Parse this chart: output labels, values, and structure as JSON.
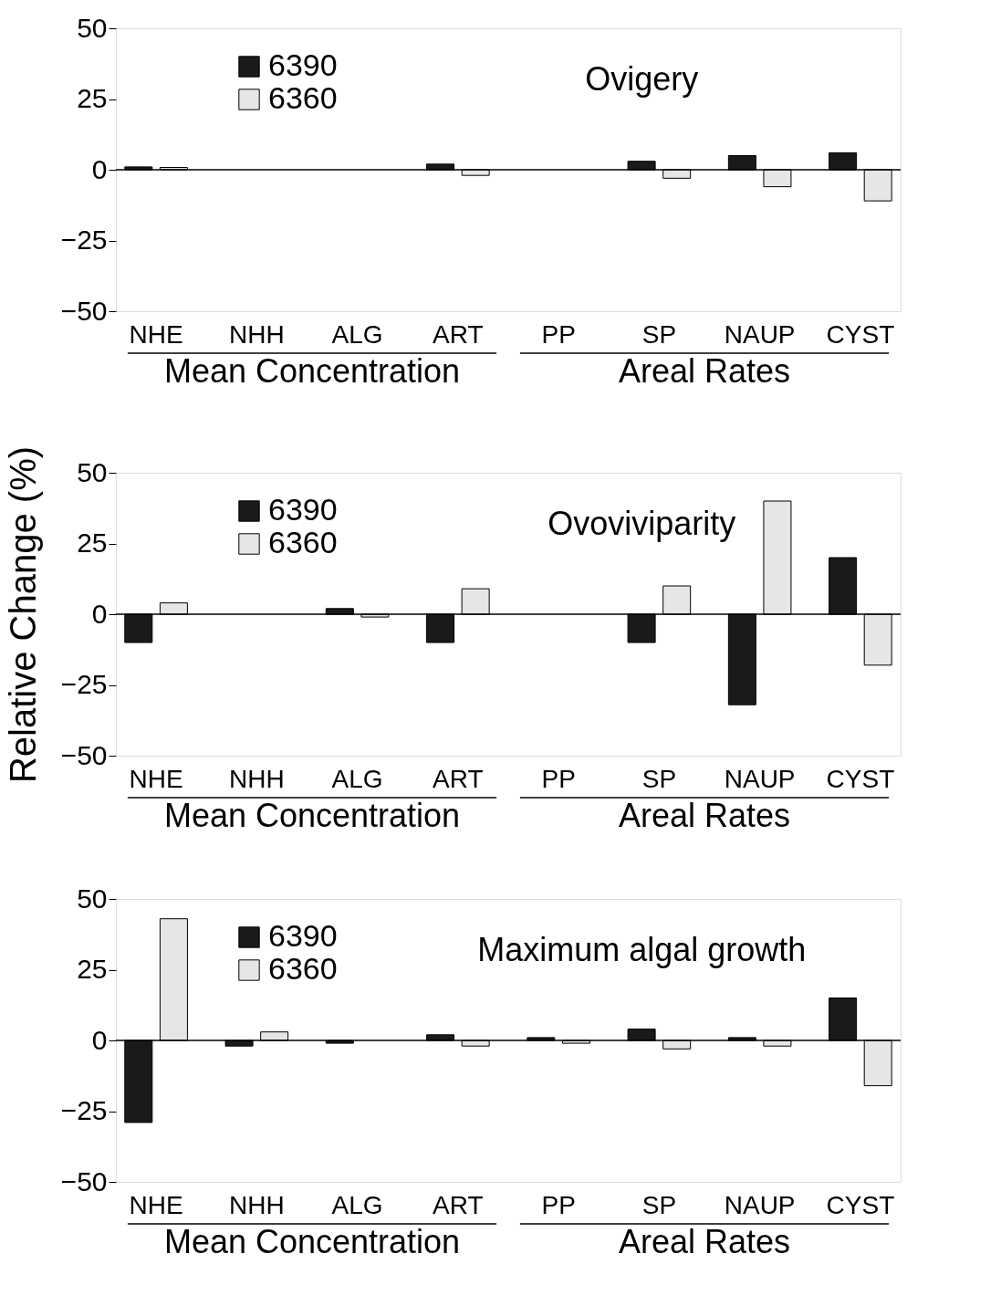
{
  "chart_data": [
    {
      "type": "bar",
      "title": "Ovigery",
      "categories": [
        "NHE",
        "NHH",
        "ALG",
        "ART",
        "PP",
        "SP",
        "NAUP",
        "CYST"
      ],
      "series": [
        {
          "name": "6390",
          "color": "#1a1a1a",
          "values": [
            1,
            null,
            null,
            2,
            null,
            3,
            5,
            6
          ]
        },
        {
          "name": "6360",
          "color": "#e6e6e6",
          "values": [
            0.8,
            null,
            null,
            -2,
            null,
            -3,
            -6,
            -11
          ]
        }
      ],
      "ylim": [
        -50,
        50
      ],
      "yticks": [
        -50,
        -25,
        0,
        25,
        50
      ],
      "grid": false,
      "legend": "top left",
      "ref_lines": [
        {
          "axis": "y",
          "value": 0
        }
      ],
      "annotations": [
        "Mean Concentration",
        "Areal Rates"
      ]
    },
    {
      "type": "bar",
      "title": "Ovoviviparity",
      "ylabel": "Relative Change  (%)",
      "categories": [
        "NHE",
        "NHH",
        "ALG",
        "ART",
        "PP",
        "SP",
        "NAUP",
        "CYST"
      ],
      "series": [
        {
          "name": "6390",
          "color": "#1a1a1a",
          "values": [
            -10,
            null,
            2,
            -10,
            null,
            -10,
            -32,
            20
          ]
        },
        {
          "name": "6360",
          "color": "#e6e6e6",
          "values": [
            4,
            null,
            -1,
            9,
            null,
            10,
            40,
            -18
          ]
        }
      ],
      "ylim": [
        -50,
        50
      ],
      "yticks": [
        -50,
        -25,
        0,
        25,
        50
      ],
      "grid": false,
      "legend": "top left",
      "ref_lines": [
        {
          "axis": "y",
          "value": 0
        }
      ],
      "annotations": [
        "Mean Concentration",
        "Areal Rates"
      ]
    },
    {
      "type": "bar",
      "title": "Maximum algal growth",
      "categories": [
        "NHE",
        "NHH",
        "ALG",
        "ART",
        "PP",
        "SP",
        "NAUP",
        "CYST"
      ],
      "series": [
        {
          "name": "6390",
          "color": "#1a1a1a",
          "values": [
            -29,
            -2,
            -1,
            2,
            1,
            4,
            1,
            15
          ]
        },
        {
          "name": "6360",
          "color": "#e6e6e6",
          "values": [
            43,
            3,
            null,
            -2,
            -1,
            -3,
            -2,
            -16
          ]
        }
      ],
      "ylim": [
        -50,
        50
      ],
      "yticks": [
        -50,
        -25,
        0,
        25,
        50
      ],
      "grid": false,
      "legend": "top left",
      "ref_lines": [
        {
          "axis": "y",
          "value": 0
        }
      ],
      "annotations": [
        "Mean Concentration",
        "Areal Rates"
      ]
    }
  ]
}
